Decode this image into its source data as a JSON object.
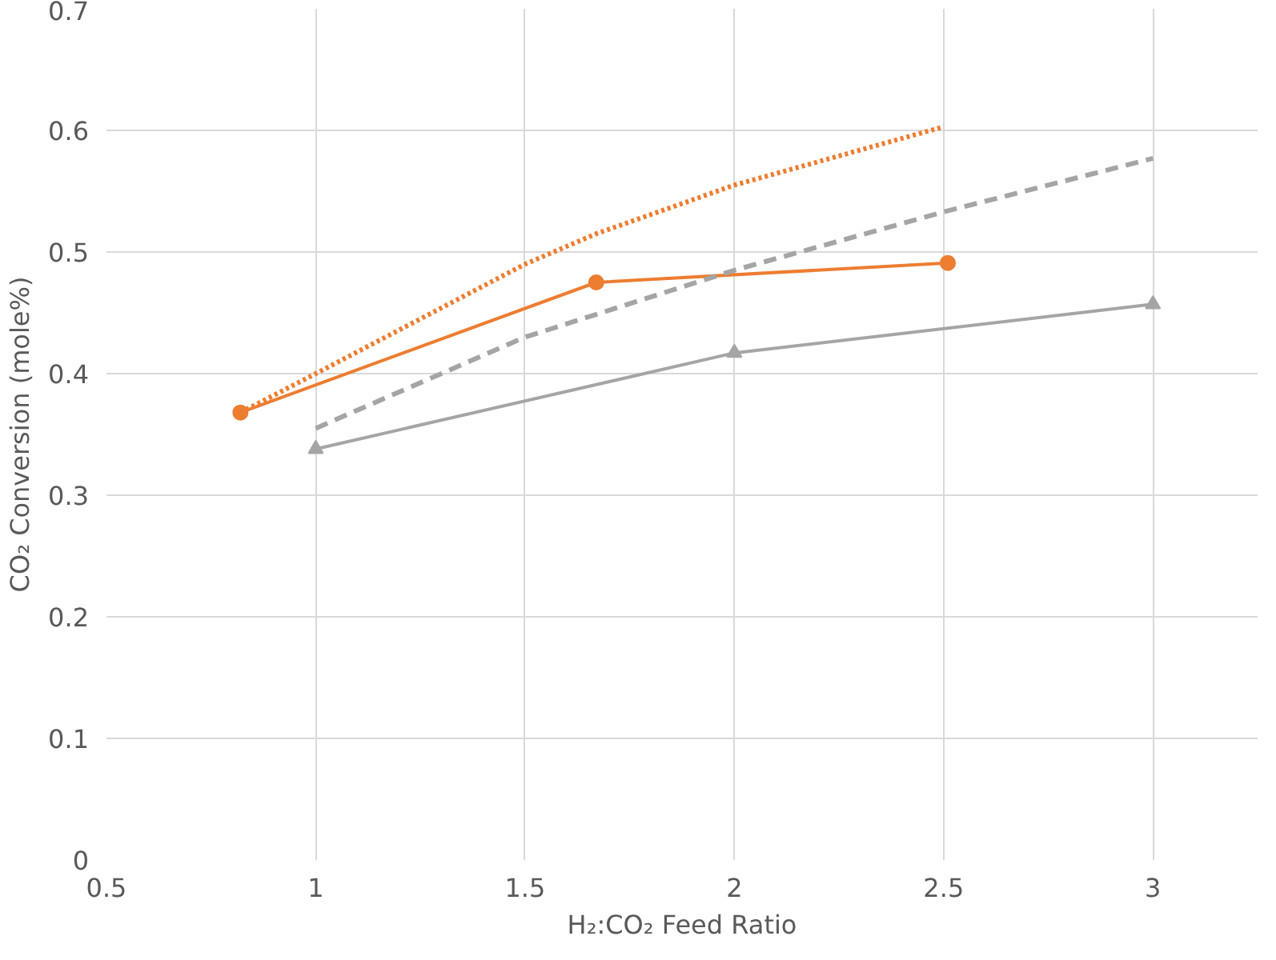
{
  "chart_data": {
    "type": "line",
    "xlabel": "H₂:CO₂ Feed Ratio",
    "ylabel": "CO₂ Conversion (mole%)",
    "xlim": [
      0.5,
      3.25
    ],
    "xticks": [
      0.5,
      1,
      1.5,
      2,
      2.5,
      3
    ],
    "ylim": [
      0,
      0.7
    ],
    "yticks": [
      0,
      0.1,
      0.2,
      0.3,
      0.4,
      0.5,
      0.6,
      0.7
    ],
    "grid": true,
    "series": [
      {
        "color": "#ed7d31",
        "marker": "circle",
        "line_style": "solid",
        "x": [
          0.82,
          1.67,
          2.51
        ],
        "values": [
          0.368,
          0.475,
          0.491
        ]
      },
      {
        "color": "#ed7d31",
        "marker": "none",
        "line_style": "dotted",
        "x": [
          0.82,
          1,
          1.5,
          1.67,
          2,
          2.5
        ],
        "values": [
          0.368,
          0.4,
          0.49,
          0.515,
          0.555,
          0.603
        ]
      },
      {
        "color": "#a5a5a5",
        "marker": "triangle",
        "line_style": "solid",
        "x": [
          1,
          2,
          3
        ],
        "values": [
          0.338,
          0.417,
          0.457
        ]
      },
      {
        "color": "#a5a5a5",
        "marker": "none",
        "line_style": "dashed",
        "x": [
          1,
          1.5,
          2,
          2.5,
          3
        ],
        "values": [
          0.355,
          0.43,
          0.485,
          0.533,
          0.577
        ]
      }
    ]
  }
}
